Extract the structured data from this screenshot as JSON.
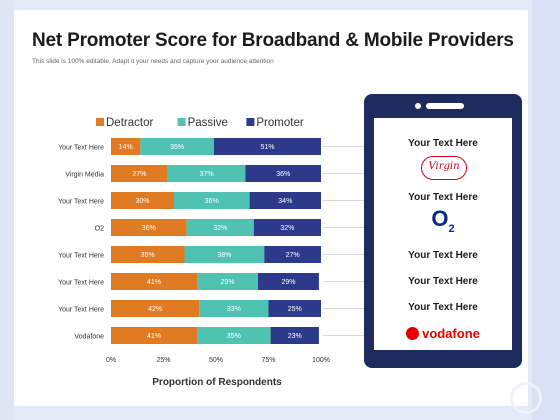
{
  "title": "Net Promoter Score for Broadband & Mobile Providers",
  "subtitle": "This slide is 100% editable. Adapt it your needs and capture your audience attention",
  "chart_data": {
    "type": "bar",
    "orientation": "horizontal",
    "stacked": true,
    "categories": [
      "Your Text Here",
      "Virgin Media",
      "Your Text Here",
      "O2",
      "Your Text Here",
      "Your Text Here",
      "Your Text Here",
      "Vodafone"
    ],
    "series": [
      {
        "name": "Detractor",
        "color": "#e07b24",
        "values": [
          14,
          27,
          30,
          36,
          35,
          41,
          42,
          41
        ]
      },
      {
        "name": "Passive",
        "color": "#4fc2b1",
        "values": [
          35,
          37,
          36,
          32,
          38,
          29,
          33,
          35
        ]
      },
      {
        "name": "Promoter",
        "color": "#2d3a8c",
        "values": [
          51,
          36,
          34,
          32,
          27,
          29,
          25,
          23
        ]
      }
    ],
    "data_labels": [
      [
        "14%",
        "35%",
        "51%"
      ],
      [
        "27%",
        "37%",
        "36%"
      ],
      [
        "30%",
        "36%",
        "34%"
      ],
      [
        "36%",
        "32%",
        "32%"
      ],
      [
        "35%",
        "38%",
        "27%"
      ],
      [
        "41%",
        "29%",
        "29%"
      ],
      [
        "42%",
        "33%",
        "25%"
      ],
      [
        "41%",
        "35%",
        "23%"
      ]
    ],
    "x_ticks": [
      "0%",
      "25%",
      "50%",
      "75%",
      "100%"
    ],
    "xlim": [
      0,
      100
    ],
    "xlabel": "Proportion of Respondents",
    "legend": "top"
  },
  "phone": {
    "providers": [
      "Your Text Here",
      "Virgin Media",
      "Your Text Here",
      "O2",
      "Your Text Here",
      "Your Text Here",
      "Your Text Here",
      "Vodafone"
    ],
    "text_rows": {
      "row0": "Your Text Here",
      "row2": "Your Text Here",
      "row4": "Your Text Here",
      "row5": "Your Text Here",
      "row6": "Your Text Here"
    },
    "virgin_logo": "Virgin",
    "o2_logo": "O",
    "o2_sub": "2",
    "vodafone_logo": "vodafone",
    "icons": [
      "virgin-media-logo-icon",
      "o2-logo-icon",
      "vodafone-logo-icon"
    ]
  }
}
